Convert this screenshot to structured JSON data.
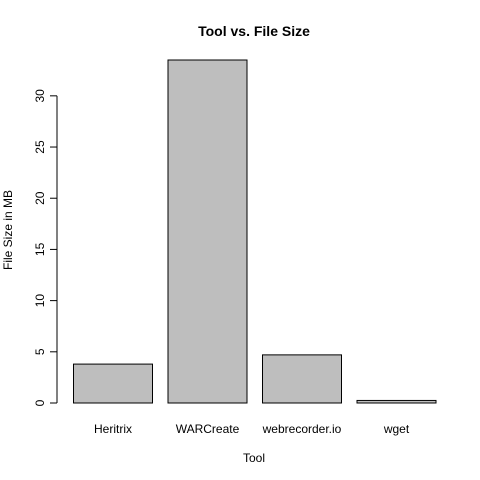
{
  "chart_data": {
    "type": "bar",
    "title": "Tool vs. File Size",
    "xlabel": "Tool",
    "ylabel": "File Size in MB",
    "categories": [
      "Heritrix",
      "WARCreate",
      "webrecorder.io",
      "wget"
    ],
    "values": [
      3.8,
      33.5,
      4.7,
      0.25
    ],
    "ylim": [
      0,
      33.5
    ],
    "yticks": [
      "0",
      "5",
      "10",
      "15",
      "20",
      "25",
      "30"
    ],
    "grid": false,
    "legend": false,
    "bar_fill": "#bebebe",
    "bar_border": "#000000"
  }
}
